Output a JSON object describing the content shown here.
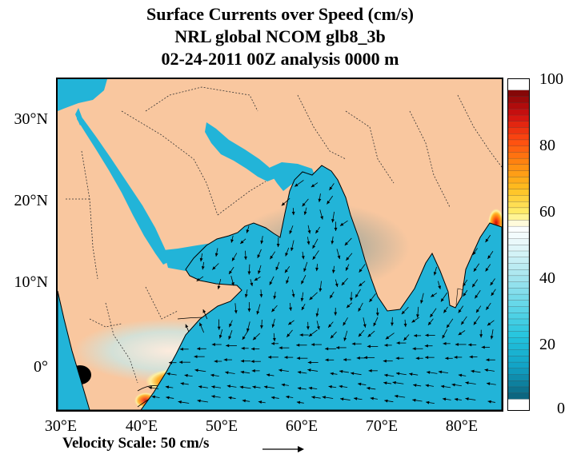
{
  "title": {
    "line1": "Surface Currents over Speed (cm/s)",
    "line2": "NRL global NCOM glb8_3b",
    "line3": "02-24-2011 00Z analysis   0000 m"
  },
  "map": {
    "lon_range": [
      30,
      85
    ],
    "lat_range": [
      -5,
      36
    ],
    "lat_labels": [
      {
        "lat": 30,
        "text": "30°N"
      },
      {
        "lat": 20,
        "text": "20°N"
      },
      {
        "lat": 10,
        "text": "10°N"
      },
      {
        "lat": 0,
        "text": "0°"
      }
    ],
    "lon_labels": [
      {
        "lon": 30,
        "text": "30°E"
      },
      {
        "lon": 40,
        "text": "40°E"
      },
      {
        "lon": 50,
        "text": "50°E"
      },
      {
        "lon": 60,
        "text": "60°E"
      },
      {
        "lon": 70,
        "text": "70°E"
      },
      {
        "lon": 80,
        "text": "80°E"
      }
    ],
    "colors": {
      "land": "#f9c79f",
      "ocean_base": "#22b4d8",
      "ocean_light": "#a8e4ef",
      "ocean_dark": "#0e86a8",
      "strong_low": "#ffd020",
      "strong_mid": "#ff7010",
      "strong_high": "#e01c10",
      "strongest": "#8a0a08",
      "border": "#000000"
    }
  },
  "colorbar": {
    "min": 0,
    "max": 100,
    "labels": [
      {
        "value": 100,
        "text": "100"
      },
      {
        "value": 80,
        "text": "80"
      },
      {
        "value": 60,
        "text": "60"
      },
      {
        "value": 40,
        "text": "40"
      },
      {
        "value": 20,
        "text": "20"
      },
      {
        "value": 0,
        "text": "0"
      }
    ],
    "stops": [
      {
        "value": 0,
        "color": "#0b5f78"
      },
      {
        "value": 10,
        "color": "#10a0c4"
      },
      {
        "value": 20,
        "color": "#22c4de"
      },
      {
        "value": 30,
        "color": "#60d6e8"
      },
      {
        "value": 40,
        "color": "#a8e6ef"
      },
      {
        "value": 50,
        "color": "#e6f8fa"
      },
      {
        "value": 56,
        "color": "#ffffff"
      },
      {
        "value": 60,
        "color": "#fff070"
      },
      {
        "value": 68,
        "color": "#ffc020"
      },
      {
        "value": 76,
        "color": "#ff8a10"
      },
      {
        "value": 84,
        "color": "#ff4a10"
      },
      {
        "value": 92,
        "color": "#d01010"
      },
      {
        "value": 100,
        "color": "#7a0606"
      }
    ]
  },
  "velocity_scale": {
    "label": "Velocity Scale:  50 cm/s",
    "speed": 50
  }
}
